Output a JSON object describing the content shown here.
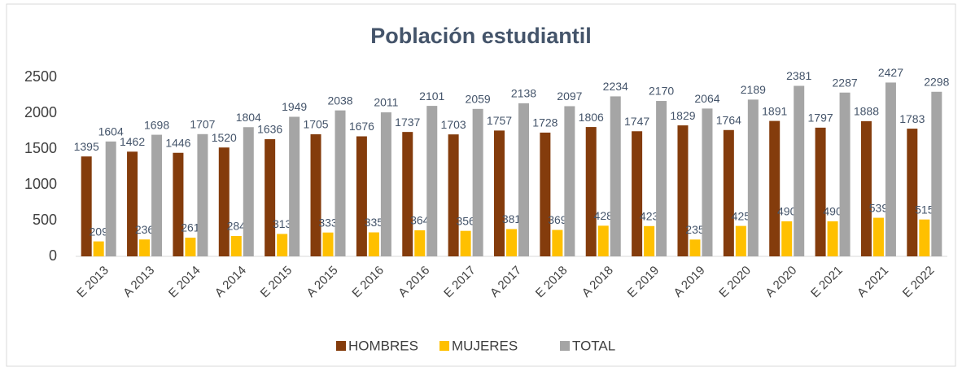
{
  "chart_data": {
    "type": "bar",
    "title": "Población estudiantil",
    "categories": [
      "E 2013",
      "A 2013",
      "E 2014",
      "A 2014",
      "E 2015",
      "A 2015",
      "E 2016",
      "A 2016",
      "E 2017",
      "A 2017",
      "E 2018",
      "A 2018",
      "E 2019",
      "A 2019",
      "E 2020",
      "A 2020",
      "E 2021",
      "A 2021",
      "E 2022"
    ],
    "series": [
      {
        "name": "HOMBRES",
        "color": "#843c0c",
        "values": [
          1395,
          1462,
          1446,
          1520,
          1636,
          1705,
          1676,
          1737,
          1703,
          1757,
          1728,
          1806,
          1747,
          1829,
          1764,
          1891,
          1797,
          1888,
          1783
        ]
      },
      {
        "name": "MUJERES",
        "color": "#ffc000",
        "values": [
          209,
          236,
          261,
          284,
          313,
          333,
          335,
          364,
          356,
          381,
          369,
          428,
          423,
          235,
          425,
          490,
          490,
          539,
          515
        ]
      },
      {
        "name": "TOTAL",
        "color": "#a5a5a5",
        "values": [
          1604,
          1698,
          1707,
          1804,
          1949,
          2038,
          2011,
          2101,
          2059,
          2138,
          2097,
          2234,
          2170,
          2064,
          2189,
          2381,
          2287,
          2427,
          2298
        ]
      }
    ],
    "ylim": [
      0,
      2500
    ],
    "yticks": [
      0,
      500,
      1000,
      1500,
      2000,
      2500
    ],
    "grid": false,
    "legend": "bottom"
  }
}
